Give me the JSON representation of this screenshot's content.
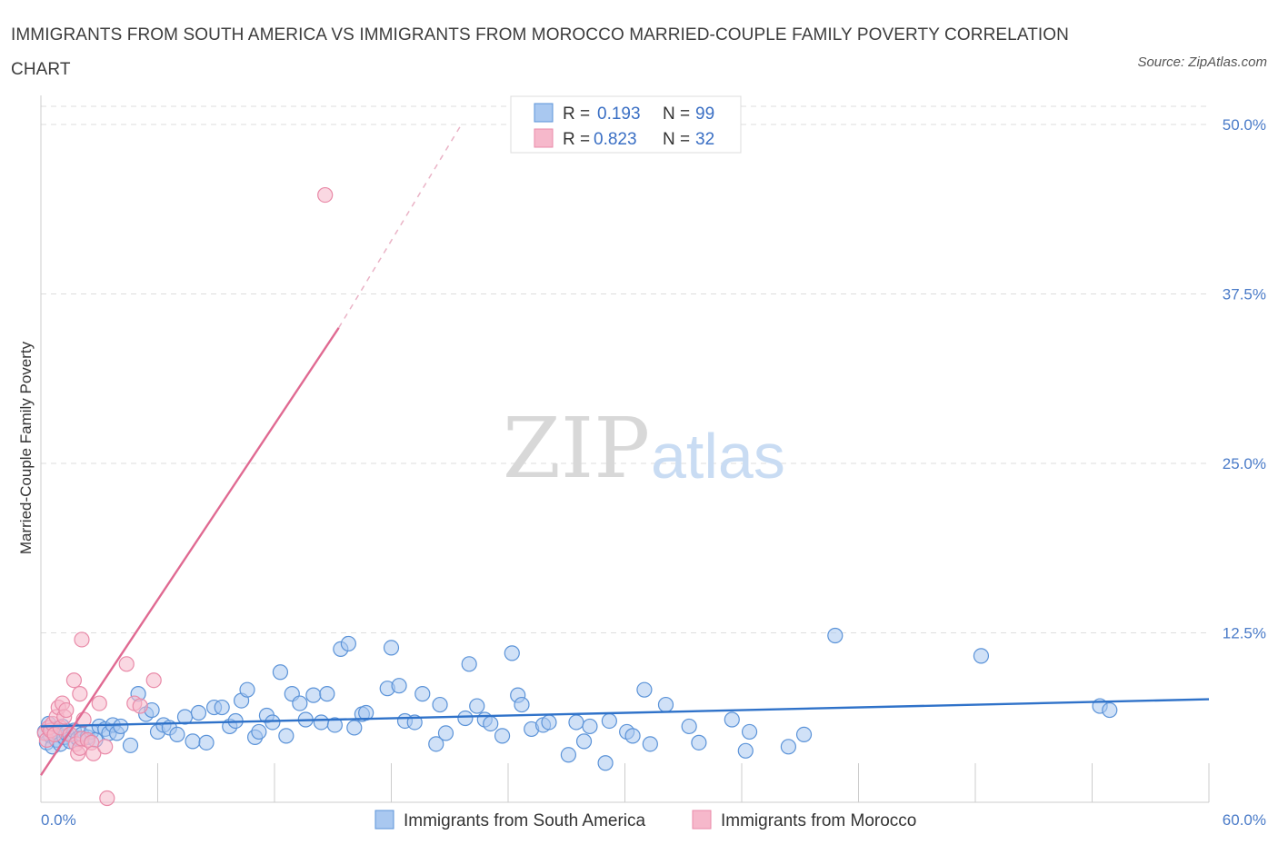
{
  "title": "IMMIGRANTS FROM SOUTH AMERICA VS IMMIGRANTS FROM MOROCCO MARRIED-COUPLE FAMILY POVERTY CORRELATION CHART",
  "source": "Source: ZipAtlas.com",
  "watermark": {
    "zip": "ZIP",
    "atlas": "atlas"
  },
  "colors": {
    "blue_fill": "#a9c8f0",
    "blue_stroke": "#5b93d8",
    "blue_line": "#2f72c9",
    "pink_fill": "#f6b8cb",
    "pink_stroke": "#e98aa8",
    "pink_line": "#e06a92",
    "grid": "#dddddd",
    "tick_text": "#4a7bc8"
  },
  "legend": {
    "rows": [
      {
        "r_label": "R =",
        "r_value": "0.193",
        "n_label": "N =",
        "n_value": "99",
        "series": "blue"
      },
      {
        "r_label": "R =",
        "r_value": "0.823",
        "n_label": "N =",
        "n_value": "32",
        "series": "pink"
      }
    ]
  },
  "chart_data": {
    "type": "scatter",
    "title": "IMMIGRANTS FROM SOUTH AMERICA VS IMMIGRANTS FROM MOROCCO MARRIED-COUPLE FAMILY POVERTY CORRELATION CHART",
    "xlabel": "",
    "ylabel": "Married-Couple Family Poverty",
    "xlim": [
      0,
      60
    ],
    "ylim": [
      0,
      50
    ],
    "x_tick_labels": [
      "0.0%",
      "60.0%"
    ],
    "y_ticks": [
      12.5,
      25.0,
      37.5,
      50.0
    ],
    "y_tick_labels": [
      "12.5%",
      "25.0%",
      "37.5%",
      "50.0%"
    ],
    "grid": true,
    "legend_position": "top-center",
    "series": [
      {
        "name": "Immigrants from South America",
        "color": "blue",
        "R": 0.193,
        "N": 99,
        "trend": {
          "x": [
            0,
            60
          ],
          "y": [
            5.6,
            7.6
          ],
          "dashed_extension": false
        },
        "points": [
          [
            0.2,
            5.2
          ],
          [
            0.3,
            4.4
          ],
          [
            0.4,
            5.8
          ],
          [
            0.5,
            4.9
          ],
          [
            0.6,
            4.1
          ],
          [
            0.7,
            5.4
          ],
          [
            0.8,
            4.6
          ],
          [
            0.9,
            5.0
          ],
          [
            1.0,
            4.3
          ],
          [
            1.1,
            5.6
          ],
          [
            1.2,
            4.8
          ],
          [
            1.3,
            5.1
          ],
          [
            1.5,
            4.5
          ],
          [
            1.7,
            5.3
          ],
          [
            1.9,
            4.7
          ],
          [
            2.1,
            5.0
          ],
          [
            2.4,
            4.8
          ],
          [
            2.6,
            5.2
          ],
          [
            2.8,
            4.6
          ],
          [
            3.0,
            5.6
          ],
          [
            3.3,
            5.4
          ],
          [
            3.5,
            5.1
          ],
          [
            3.7,
            5.7
          ],
          [
            3.9,
            5.1
          ],
          [
            4.1,
            5.6
          ],
          [
            4.6,
            4.2
          ],
          [
            5.0,
            8.0
          ],
          [
            5.4,
            6.5
          ],
          [
            5.7,
            6.8
          ],
          [
            6.0,
            5.2
          ],
          [
            6.3,
            5.7
          ],
          [
            6.6,
            5.5
          ],
          [
            7.0,
            5.0
          ],
          [
            7.4,
            6.3
          ],
          [
            7.8,
            4.5
          ],
          [
            8.1,
            6.6
          ],
          [
            8.5,
            4.4
          ],
          [
            8.9,
            7.0
          ],
          [
            9.3,
            7.0
          ],
          [
            9.7,
            5.6
          ],
          [
            10.0,
            6.0
          ],
          [
            10.3,
            7.5
          ],
          [
            10.6,
            8.3
          ],
          [
            11.0,
            4.8
          ],
          [
            11.2,
            5.2
          ],
          [
            11.6,
            6.4
          ],
          [
            11.9,
            5.9
          ],
          [
            12.3,
            9.6
          ],
          [
            12.6,
            4.9
          ],
          [
            12.9,
            8.0
          ],
          [
            13.3,
            7.3
          ],
          [
            13.6,
            6.1
          ],
          [
            14.0,
            7.9
          ],
          [
            14.4,
            5.9
          ],
          [
            14.7,
            8.0
          ],
          [
            15.1,
            5.7
          ],
          [
            15.4,
            11.3
          ],
          [
            15.8,
            11.7
          ],
          [
            16.1,
            5.5
          ],
          [
            16.5,
            6.5
          ],
          [
            16.7,
            6.6
          ],
          [
            17.8,
            8.4
          ],
          [
            18.0,
            11.4
          ],
          [
            18.4,
            8.6
          ],
          [
            18.7,
            6.0
          ],
          [
            19.2,
            5.9
          ],
          [
            19.6,
            8.0
          ],
          [
            20.3,
            4.3
          ],
          [
            20.5,
            7.2
          ],
          [
            20.8,
            5.1
          ],
          [
            21.8,
            6.2
          ],
          [
            22.0,
            10.2
          ],
          [
            22.4,
            7.1
          ],
          [
            22.8,
            6.1
          ],
          [
            23.1,
            5.8
          ],
          [
            23.7,
            4.9
          ],
          [
            24.2,
            11.0
          ],
          [
            24.5,
            7.9
          ],
          [
            24.7,
            7.2
          ],
          [
            25.2,
            5.4
          ],
          [
            25.8,
            5.7
          ],
          [
            26.1,
            5.9
          ],
          [
            27.1,
            3.5
          ],
          [
            27.5,
            5.9
          ],
          [
            27.9,
            4.5
          ],
          [
            28.2,
            5.6
          ],
          [
            29.0,
            2.9
          ],
          [
            29.2,
            6.0
          ],
          [
            30.1,
            5.2
          ],
          [
            30.4,
            4.9
          ],
          [
            31.0,
            8.3
          ],
          [
            31.3,
            4.3
          ],
          [
            32.1,
            7.2
          ],
          [
            33.3,
            5.6
          ],
          [
            33.8,
            4.4
          ],
          [
            35.5,
            6.1
          ],
          [
            36.2,
            3.8
          ],
          [
            36.4,
            5.2
          ],
          [
            38.4,
            4.1
          ],
          [
            39.2,
            5.0
          ],
          [
            40.8,
            12.3
          ],
          [
            48.3,
            10.8
          ],
          [
            54.4,
            7.1
          ],
          [
            54.9,
            6.8
          ]
        ]
      },
      {
        "name": "Immigrants from Morocco",
        "color": "pink",
        "R": 0.823,
        "N": 32,
        "trend": {
          "x": [
            0,
            15.3
          ],
          "y": [
            2.0,
            35.0
          ],
          "dashed_to": [
            21.6,
            50.0
          ]
        },
        "points": [
          [
            0.2,
            5.1
          ],
          [
            0.3,
            4.6
          ],
          [
            0.4,
            5.5
          ],
          [
            0.5,
            5.3
          ],
          [
            0.6,
            5.8
          ],
          [
            0.7,
            5.0
          ],
          [
            0.8,
            6.3
          ],
          [
            0.9,
            7.0
          ],
          [
            1.0,
            5.5
          ],
          [
            1.1,
            7.3
          ],
          [
            1.2,
            6.3
          ],
          [
            1.3,
            6.8
          ],
          [
            1.5,
            5.0
          ],
          [
            1.7,
            9.0
          ],
          [
            1.8,
            4.3
          ],
          [
            1.9,
            3.6
          ],
          [
            2.0,
            4.0
          ],
          [
            2.1,
            4.7
          ],
          [
            2.2,
            6.1
          ],
          [
            2.0,
            8.0
          ],
          [
            2.1,
            12.0
          ],
          [
            2.4,
            4.6
          ],
          [
            2.6,
            4.4
          ],
          [
            2.7,
            3.6
          ],
          [
            3.0,
            7.3
          ],
          [
            3.3,
            4.1
          ],
          [
            3.4,
            0.3
          ],
          [
            4.4,
            10.2
          ],
          [
            4.8,
            7.3
          ],
          [
            5.1,
            7.1
          ],
          [
            5.8,
            9.0
          ],
          [
            14.6,
            44.8
          ]
        ]
      }
    ]
  },
  "bottom_legend": [
    {
      "label": "Immigrants from South America",
      "series": "blue"
    },
    {
      "label": "Immigrants from Morocco",
      "series": "pink"
    }
  ]
}
